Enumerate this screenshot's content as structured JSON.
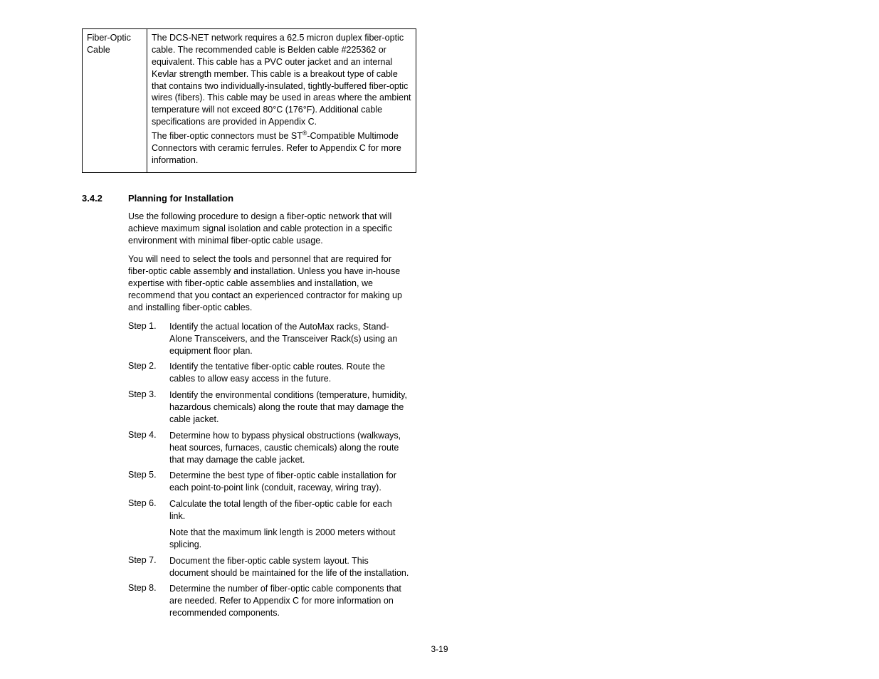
{
  "table": {
    "label": "Fiber-Optic Cable",
    "para1": "The DCS-NET network requires a 62.5 micron duplex fiber-optic cable. The recommended cable is Belden cable #225362 or equivalent. This cable has a PVC outer jacket and an internal Kevlar strength member. This cable is a breakout type of cable that contains two individually-insulated, tightly-buffered fiber-optic wires (fibers). This cable may be used in areas where the ambient temperature will not exceed 80°C (176°F). Additional cable specifications are provided in Appendix C.",
    "para2_pre": "The fiber-optic connectors must be ST",
    "para2_sup": "®",
    "para2_post": "-Compatible Multimode Connectors with ceramic ferrules. Refer to Appendix C for more information."
  },
  "section": {
    "number": "3.4.2",
    "title": "Planning for Installation"
  },
  "intro": [
    "Use the following procedure to design a fiber-optic network that will achieve maximum signal isolation and cable protection in a specific environment with minimal fiber-optic cable usage.",
    "You will need to select the tools and personnel that are required for fiber-optic cable assembly and installation. Unless you have in-house expertise with fiber-optic cable assemblies and installation, we recommend that you contact an experienced contractor for making up and installing fiber-optic cables."
  ],
  "steps": [
    {
      "label": "Step 1.",
      "paras": [
        "Identify the actual location of the AutoMax racks, Stand-Alone Transceivers, and the Transceiver Rack(s) using an equipment floor plan."
      ]
    },
    {
      "label": "Step 2.",
      "paras": [
        "Identify the tentative fiber-optic cable routes. Route the cables to allow easy access in the future."
      ]
    },
    {
      "label": "Step 3.",
      "paras": [
        "Identify the environmental conditions (temperature, humidity, hazardous chemicals) along the route that may damage the cable jacket."
      ]
    },
    {
      "label": "Step 4.",
      "paras": [
        "Determine how to bypass physical obstructions (walkways, heat sources, furnaces, caustic chemicals) along the route that may damage the cable jacket."
      ]
    },
    {
      "label": "Step 5.",
      "paras": [
        "Determine the best type of fiber-optic cable installation for each point-to-point link (conduit, raceway, wiring tray)."
      ]
    },
    {
      "label": "Step 6.",
      "paras": [
        "Calculate the total length of the fiber-optic cable for each link.",
        "Note that the maximum link length is 2000 meters without splicing."
      ]
    },
    {
      "label": "Step 7.",
      "paras": [
        "Document the fiber-optic cable system layout. This document should be maintained for the life of the installation."
      ]
    },
    {
      "label": "Step 8.",
      "paras": [
        "Determine the number of fiber-optic cable components that are needed. Refer to Appendix C for more information on recommended components."
      ]
    }
  ],
  "page_number": "3-19"
}
